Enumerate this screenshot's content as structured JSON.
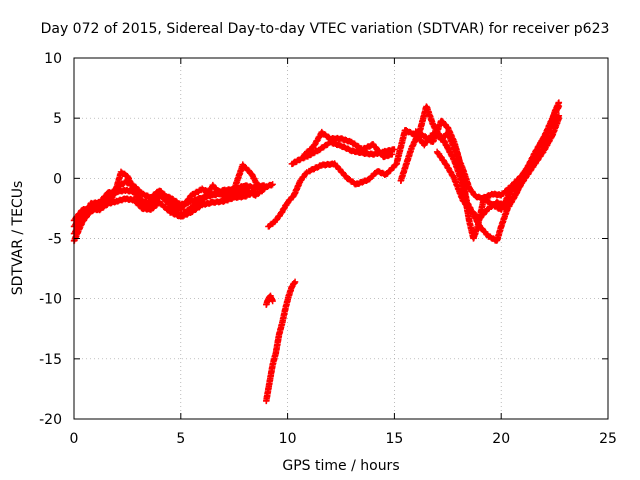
{
  "chart_data": {
    "type": "scatter",
    "title": "Day 072 of 2015, Sidereal Day-to-day VTEC variation (SDTVAR) for receiver p623",
    "xlabel": "GPS time / hours",
    "ylabel": "SDTVAR / TECUs",
    "xlim": [
      0,
      25
    ],
    "ylim": [
      -20,
      10
    ],
    "xticks": [
      0,
      5,
      10,
      15,
      20,
      25
    ],
    "yticks": [
      -20,
      -15,
      -10,
      -5,
      0,
      5,
      10
    ],
    "grid": true,
    "marker": "+",
    "color": "#ff0000",
    "series": [
      {
        "tracks": [
          [
            [
              0.0,
              -5.2
            ],
            [
              0.2,
              -4.4
            ],
            [
              0.4,
              -3.6
            ],
            [
              0.7,
              -2.9
            ],
            [
              1.0,
              -2.5
            ],
            [
              1.5,
              -2.2
            ],
            [
              1.9,
              -1.3
            ],
            [
              2.2,
              0.5
            ],
            [
              2.5,
              0.2
            ],
            [
              2.8,
              -1.0
            ],
            [
              3.2,
              -1.9
            ],
            [
              3.6,
              -2.0
            ],
            [
              4.0,
              -1.5
            ],
            [
              4.5,
              -1.6
            ],
            [
              5.0,
              -2.2
            ],
            [
              5.5,
              -1.9
            ],
            [
              6.0,
              -1.6
            ],
            [
              6.5,
              -1.4
            ],
            [
              7.0,
              -1.2
            ],
            [
              7.5,
              -0.9
            ],
            [
              7.9,
              1.1
            ],
            [
              8.3,
              0.4
            ],
            [
              8.6,
              -0.6
            ],
            [
              9.0,
              -0.7
            ],
            [
              9.3,
              -0.5
            ]
          ],
          [
            [
              0.0,
              -4.6
            ],
            [
              0.3,
              -3.8
            ],
            [
              0.6,
              -3.0
            ],
            [
              0.9,
              -2.4
            ],
            [
              1.2,
              -2.6
            ],
            [
              1.6,
              -1.6
            ],
            [
              2.0,
              -0.8
            ],
            [
              2.4,
              -0.3
            ],
            [
              2.8,
              -0.6
            ],
            [
              3.2,
              -1.3
            ],
            [
              3.6,
              -1.6
            ],
            [
              4.0,
              -1.0
            ],
            [
              4.5,
              -1.8
            ],
            [
              5.0,
              -2.6
            ],
            [
              5.5,
              -1.4
            ],
            [
              6.0,
              -0.9
            ],
            [
              6.5,
              -1.3
            ],
            [
              7.0,
              -1.0
            ],
            [
              7.5,
              -0.9
            ],
            [
              8.0,
              -0.6
            ],
            [
              8.5,
              -0.8
            ],
            [
              8.9,
              -0.6
            ]
          ],
          [
            [
              0.0,
              -4.0
            ],
            [
              0.4,
              -3.1
            ],
            [
              0.8,
              -2.1
            ],
            [
              1.2,
              -2.0
            ],
            [
              1.6,
              -1.2
            ],
            [
              2.0,
              -1.1
            ],
            [
              2.4,
              -1.0
            ],
            [
              2.8,
              -1.1
            ],
            [
              3.2,
              -2.2
            ],
            [
              3.6,
              -2.3
            ],
            [
              4.0,
              -1.2
            ],
            [
              4.5,
              -2.3
            ],
            [
              5.0,
              -3.1
            ],
            [
              5.5,
              -2.4
            ],
            [
              6.0,
              -1.9
            ],
            [
              6.5,
              -0.6
            ],
            [
              7.0,
              -1.5
            ],
            [
              7.5,
              -1.3
            ],
            [
              8.0,
              -1.0
            ],
            [
              8.5,
              -1.4
            ],
            [
              8.9,
              -0.9
            ]
          ],
          [
            [
              0.0,
              -3.5
            ],
            [
              0.4,
              -2.6
            ],
            [
              0.8,
              -2.6
            ],
            [
              1.2,
              -2.6
            ],
            [
              1.6,
              -2.1
            ],
            [
              2.0,
              -1.9
            ],
            [
              2.4,
              -1.7
            ],
            [
              2.8,
              -1.8
            ],
            [
              3.2,
              -2.5
            ],
            [
              3.6,
              -2.6
            ],
            [
              4.0,
              -2.0
            ],
            [
              4.5,
              -2.8
            ],
            [
              5.0,
              -3.2
            ],
            [
              5.5,
              -2.8
            ],
            [
              6.0,
              -2.2
            ],
            [
              6.5,
              -2.0
            ],
            [
              7.0,
              -1.9
            ],
            [
              7.5,
              -1.6
            ],
            [
              8.0,
              -1.5
            ],
            [
              8.5,
              -1.1
            ]
          ],
          [
            [
              9.0,
              -10.5
            ],
            [
              9.1,
              -10.0
            ],
            [
              9.2,
              -9.8
            ],
            [
              9.3,
              -10.2
            ]
          ],
          [
            [
              9.0,
              -18.5
            ],
            [
              9.15,
              -17.0
            ],
            [
              9.3,
              -15.5
            ],
            [
              9.45,
              -14.5
            ],
            [
              9.6,
              -13.0
            ],
            [
              9.75,
              -12.0
            ],
            [
              9.9,
              -10.8
            ],
            [
              10.05,
              -9.8
            ],
            [
              10.2,
              -9.0
            ],
            [
              10.35,
              -8.6
            ]
          ],
          [
            [
              9.1,
              -4.0
            ],
            [
              9.4,
              -3.6
            ],
            [
              9.7,
              -2.9
            ],
            [
              10.0,
              -2.0
            ],
            [
              10.3,
              -1.4
            ],
            [
              10.6,
              -0.2
            ],
            [
              10.9,
              0.5
            ]
          ],
          [
            [
              10.2,
              1.2
            ],
            [
              10.6,
              1.6
            ],
            [
              11.0,
              1.9
            ],
            [
              11.5,
              2.4
            ],
            [
              12.0,
              3.0
            ],
            [
              12.5,
              2.7
            ],
            [
              13.0,
              2.3
            ],
            [
              13.5,
              2.1
            ],
            [
              14.0,
              2.0
            ],
            [
              14.5,
              2.2
            ],
            [
              15.0,
              2.4
            ]
          ],
          [
            [
              10.8,
              2.0
            ],
            [
              11.2,
              2.6
            ],
            [
              11.6,
              3.8
            ],
            [
              12.0,
              3.3
            ],
            [
              12.5,
              3.3
            ],
            [
              13.0,
              3.0
            ],
            [
              13.5,
              2.4
            ],
            [
              14.0,
              2.8
            ],
            [
              14.5,
              1.8
            ],
            [
              14.9,
              2.0
            ]
          ],
          [
            [
              11.0,
              0.6
            ],
            [
              11.6,
              1.1
            ],
            [
              12.2,
              1.2
            ],
            [
              12.8,
              0.0
            ],
            [
              13.2,
              -0.5
            ],
            [
              13.8,
              -0.1
            ],
            [
              14.2,
              0.6
            ],
            [
              14.6,
              0.3
            ],
            [
              15.1,
              1.2
            ],
            [
              15.5,
              4.0
            ],
            [
              16.0,
              3.6
            ],
            [
              16.4,
              2.8
            ],
            [
              16.8,
              3.7
            ],
            [
              17.2,
              3.5
            ],
            [
              17.5,
              2.5
            ],
            [
              17.8,
              1.5
            ],
            [
              18.2,
              -0.5
            ],
            [
              18.5,
              -3.5
            ],
            [
              18.7,
              -5.0
            ],
            [
              18.9,
              -4.0
            ],
            [
              19.2,
              -1.6
            ],
            [
              19.6,
              -1.3
            ],
            [
              20.0,
              -1.4
            ],
            [
              20.5,
              -0.6
            ],
            [
              21.0,
              0.3
            ],
            [
              21.5,
              1.6
            ],
            [
              22.0,
              2.5
            ],
            [
              22.5,
              5.5
            ],
            [
              22.7,
              6.3
            ]
          ],
          [
            [
              15.3,
              -0.2
            ],
            [
              15.8,
              2.5
            ],
            [
              16.2,
              4.0
            ],
            [
              16.5,
              6.0
            ],
            [
              16.8,
              4.5
            ],
            [
              17.2,
              3.2
            ],
            [
              17.5,
              3.8
            ],
            [
              17.8,
              2.5
            ],
            [
              18.2,
              0.8
            ],
            [
              18.5,
              -0.8
            ],
            [
              18.8,
              -1.5
            ],
            [
              19.2,
              -1.7
            ],
            [
              19.6,
              -2.2
            ],
            [
              20.0,
              -2.6
            ],
            [
              20.4,
              -1.2
            ],
            [
              20.8,
              -0.3
            ],
            [
              21.2,
              0.8
            ],
            [
              21.6,
              2.2
            ],
            [
              22.0,
              3.4
            ],
            [
              22.4,
              5.0
            ],
            [
              22.7,
              6.0
            ]
          ],
          [
            [
              16.0,
              3.9
            ],
            [
              16.4,
              3.5
            ],
            [
              16.8,
              3.0
            ],
            [
              17.2,
              4.8
            ],
            [
              17.5,
              4.2
            ],
            [
              17.8,
              3.0
            ],
            [
              18.0,
              1.8
            ],
            [
              18.2,
              -0.2
            ],
            [
              18.4,
              -2.0
            ],
            [
              18.7,
              -3.0
            ],
            [
              19.0,
              -4.0
            ],
            [
              19.4,
              -4.8
            ],
            [
              19.8,
              -5.2
            ],
            [
              20.0,
              -4.0
            ],
            [
              20.3,
              -2.5
            ],
            [
              20.7,
              -1.3
            ],
            [
              21.0,
              0.0
            ],
            [
              21.4,
              1.2
            ],
            [
              21.8,
              2.8
            ],
            [
              22.2,
              4.0
            ],
            [
              22.7,
              5.2
            ]
          ],
          [
            [
              17.0,
              2.2
            ],
            [
              17.4,
              1.2
            ],
            [
              17.8,
              0.0
            ],
            [
              18.2,
              -1.8
            ],
            [
              18.6,
              -2.8
            ],
            [
              19.0,
              -3.3
            ],
            [
              19.4,
              -2.5
            ],
            [
              19.8,
              -2.0
            ],
            [
              20.2,
              -2.3
            ],
            [
              20.6,
              -1.5
            ],
            [
              21.0,
              -0.3
            ],
            [
              21.5,
              1.0
            ],
            [
              22.0,
              2.3
            ],
            [
              22.4,
              3.6
            ],
            [
              22.7,
              5.0
            ]
          ]
        ]
      }
    ]
  }
}
